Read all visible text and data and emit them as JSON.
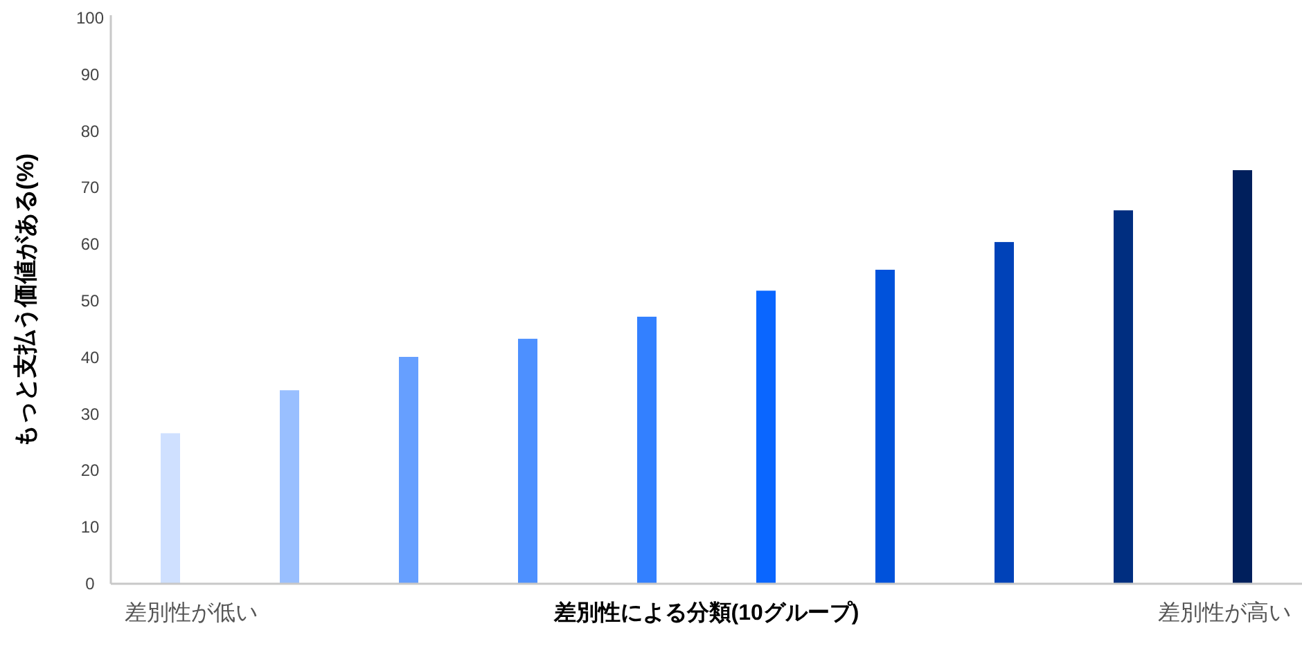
{
  "chart_data": {
    "type": "bar",
    "ylabel": "もっと支払う価値がある(%)",
    "xlabel": "差別性による分類(10グループ)",
    "annotations": [
      "差別性が低い",
      "差別性が高い"
    ],
    "categories": [
      null,
      null,
      null,
      null,
      null,
      null,
      null,
      null,
      null,
      null
    ],
    "values": [
      26.6,
      34.2,
      40.1,
      43.3,
      47.2,
      51.8,
      55.5,
      60.4,
      66.0,
      73.1
    ],
    "colors": [
      "#cfe0ff",
      "#99bfff",
      "#669fff",
      "#4d90ff",
      "#3380ff",
      "#0a66ff",
      "#0052db",
      "#0042b8",
      "#002e80",
      "#001f5c"
    ],
    "ylim": [
      0,
      100
    ],
    "yticks": [
      0,
      10,
      20,
      30,
      40,
      50,
      60,
      70,
      80,
      90,
      100
    ],
    "grid": false
  }
}
